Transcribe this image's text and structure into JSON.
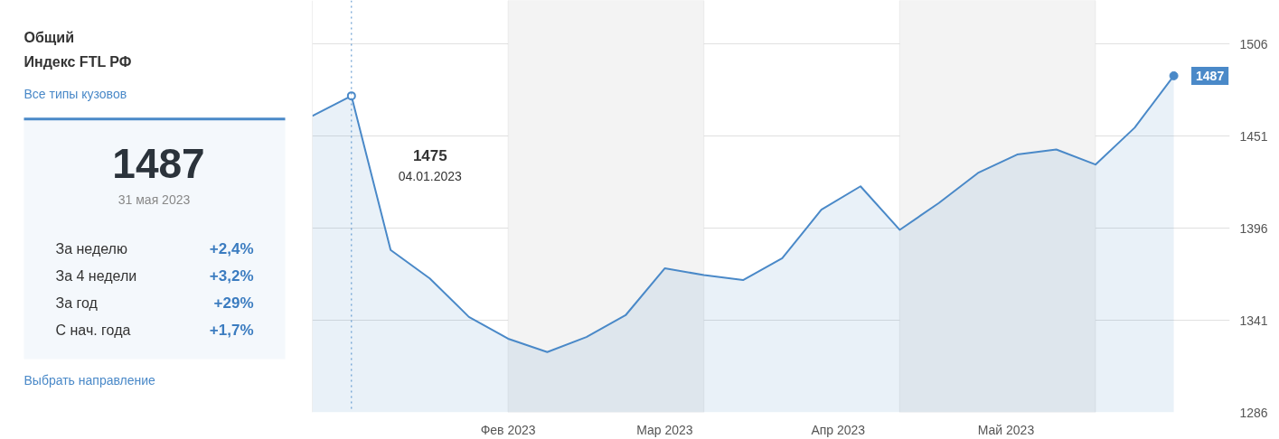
{
  "chart_data": [
    {
      "type": "other",
      "title": "Общий",
      "subtitle": "Индекс FTL РФ",
      "annotations": [
        "Все типы кузовов",
        "1487",
        "31 мая 2023",
        "За неделю",
        "+2,4%",
        "За 4 недели",
        "+3,2%",
        "За год",
        "+29%",
        "С нач. года",
        "+1,7%",
        "Выбрать направление"
      ]
    },
    {
      "type": "area",
      "x": [
        "2022-12-28",
        "2023-01-04",
        "2023-01-11",
        "2023-01-18",
        "2023-01-25",
        "2023-02-01",
        "2023-02-08",
        "2023-02-15",
        "2023-02-22",
        "2023-03-01",
        "2023-03-08",
        "2023-03-15",
        "2023-03-22",
        "2023-03-29",
        "2023-04-05",
        "2023-04-12",
        "2023-04-19",
        "2023-04-26",
        "2023-05-03",
        "2023-05-10",
        "2023-05-17",
        "2023-05-24",
        "2023-05-31"
      ],
      "series": [
        {
          "color": "#4a89c8",
          "values": [
            1463,
            1475,
            1383,
            1366,
            1343,
            1330,
            1322,
            1331,
            1344,
            1372,
            1368,
            1365,
            1378,
            1407,
            1421,
            1395,
            1411,
            1429,
            1440,
            1443,
            1434,
            1456,
            1487
          ]
        }
      ],
      "xlim": [
        "2022-12-28",
        "2023-06-10"
      ],
      "xticks": [
        {
          "value": "2023-02-01",
          "label": "Фев 2023"
        },
        {
          "value": "2023-03-01",
          "label": "Мар 2023"
        },
        {
          "value": "2023-04-01",
          "label": "Апр 2023"
        },
        {
          "value": "2023-05-01",
          "label": "Май 2023"
        }
      ],
      "ylim": [
        1286,
        1532
      ],
      "yticks": [
        1286,
        1341,
        1396,
        1451,
        1506
      ],
      "grid": "y",
      "marker": "none",
      "line_style": "solid",
      "bands": [
        {
          "axis": "x",
          "from": "2023-02-01",
          "to": "2023-03-08",
          "color": "#f3f3f3"
        },
        {
          "axis": "x",
          "from": "2023-04-12",
          "to": "2023-05-17",
          "color": "#f3f3f3"
        }
      ],
      "ref_lines": [
        {
          "axis": "x",
          "value": "2023-01-04",
          "color": "#4a89c8",
          "line_style": "dotted"
        }
      ],
      "annotations": [
        "1475",
        "04.01.2023",
        {
          "text": "1487",
          "x": "2023-05-31",
          "y": 1487
        }
      ]
    }
  ]
}
